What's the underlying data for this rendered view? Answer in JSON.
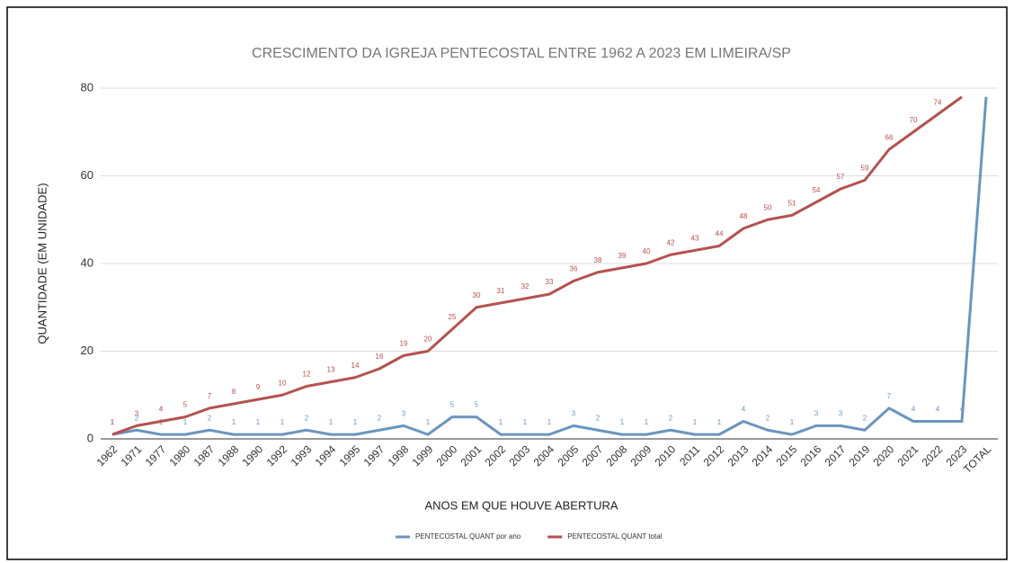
{
  "chart_data": {
    "type": "line",
    "title": "CRESCIMENTO DA IGREJA PENTECOSTAL ENTRE 1962 A 2023 EM LIMEIRA/SP",
    "xlabel": "ANOS EM QUE HOUVE ABERTURA",
    "ylabel": "QUANTIDADE (EM UNIDADE)",
    "categories": [
      "1962",
      "1971",
      "1977",
      "1980",
      "1987",
      "1988",
      "1990",
      "1992",
      "1993",
      "1994",
      "1995",
      "1997",
      "1998",
      "1999",
      "2000",
      "2001",
      "2002",
      "2003",
      "2004",
      "2005",
      "2007",
      "2008",
      "2009",
      "2010",
      "2011",
      "2012",
      "2013",
      "2014",
      "2015",
      "2016",
      "2017",
      "2019",
      "2020",
      "2021",
      "2022",
      "2023",
      "TOTAL"
    ],
    "series": [
      {
        "name": "PENTECOSTAL QUANT por ano",
        "color": "#6a96c0",
        "values": [
          1,
          2,
          1,
          1,
          2,
          1,
          1,
          1,
          2,
          1,
          1,
          2,
          3,
          1,
          5,
          5,
          1,
          1,
          1,
          3,
          2,
          1,
          1,
          2,
          1,
          1,
          4,
          2,
          1,
          3,
          3,
          2,
          7,
          4,
          4,
          4,
          78
        ],
        "value_labels": [
          "1",
          "2",
          "1",
          "1",
          "2",
          "1",
          "1",
          "1",
          "2",
          "1",
          "1",
          "2",
          "3",
          "1",
          "5",
          "5",
          "1",
          "1",
          "1",
          "3",
          "2",
          "1",
          "1",
          "2",
          "1",
          "1",
          "4",
          "2",
          "1",
          "3",
          "3",
          "2",
          "7",
          "4",
          "4",
          "4",
          null
        ]
      },
      {
        "name": "PENTECOSTAL QUANT total",
        "color": "#b5524f",
        "values": [
          1,
          3,
          4,
          5,
          7,
          8,
          9,
          10,
          12,
          13,
          14,
          16,
          19,
          20,
          25,
          30,
          31,
          32,
          33,
          36,
          38,
          39,
          40,
          42,
          43,
          44,
          48,
          50,
          51,
          54,
          57,
          59,
          66,
          70,
          74,
          78,
          null
        ],
        "value_labels": [
          "1",
          "3",
          "4",
          "5",
          "7",
          "8",
          "9",
          "10",
          "12",
          "13",
          "14",
          "16",
          "19",
          "20",
          "25",
          "30",
          "31",
          "32",
          "33",
          "36",
          "38",
          "39",
          "40",
          "42",
          "43",
          "44",
          "48",
          "50",
          "51",
          "54",
          "57",
          "59",
          "66",
          "70",
          "74",
          null,
          null
        ]
      }
    ],
    "ylim": [
      0,
      80
    ],
    "yticks": [
      0,
      20,
      40,
      60,
      80
    ],
    "grid": true,
    "legend": "bottom"
  }
}
